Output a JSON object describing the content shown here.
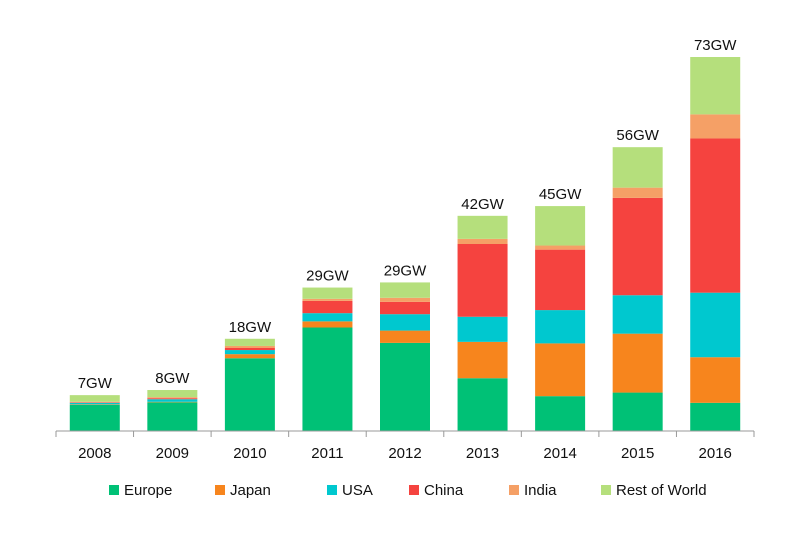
{
  "chart_data": {
    "type": "bar",
    "stacked": true,
    "categories": [
      "2008",
      "2009",
      "2010",
      "2011",
      "2012",
      "2013",
      "2014",
      "2015",
      "2016"
    ],
    "totals_labels": [
      "7GW",
      "8GW",
      "18GW",
      "29GW",
      "29GW",
      "42GW",
      "45GW",
      "56GW",
      "73GW"
    ],
    "series": [
      {
        "name": "Europe",
        "color": "#00c176",
        "values": [
          5.1,
          5.6,
          14.2,
          20.2,
          17.2,
          10.3,
          6.8,
          7.5,
          5.5
        ]
      },
      {
        "name": "Japan",
        "color": "#f7851d",
        "values": [
          0.1,
          0.1,
          0.8,
          1.2,
          2.4,
          7.1,
          10.3,
          11.5,
          8.9
        ]
      },
      {
        "name": "USA",
        "color": "#00c8cf",
        "values": [
          0.3,
          0.5,
          0.8,
          1.6,
          3.2,
          4.9,
          6.5,
          7.5,
          12.6
        ]
      },
      {
        "name": "China",
        "color": "#f5433f",
        "values": [
          0.1,
          0.2,
          0.4,
          2.4,
          2.4,
          14.2,
          11.8,
          19.0,
          30.1
        ]
      },
      {
        "name": "India",
        "color": "#f5a066",
        "values": [
          0.1,
          0.2,
          0.4,
          0.4,
          0.8,
          1.0,
          0.8,
          2.0,
          4.7
        ]
      },
      {
        "name": "Rest of World",
        "color": "#b5df7c",
        "values": [
          1.3,
          1.4,
          1.4,
          2.2,
          3.0,
          4.5,
          7.7,
          7.9,
          11.2
        ]
      }
    ],
    "xlabel": "",
    "ylabel": "",
    "ylim": [
      0,
      73
    ],
    "grid": false,
    "legend": "bottom",
    "axis_color": "#999999"
  }
}
